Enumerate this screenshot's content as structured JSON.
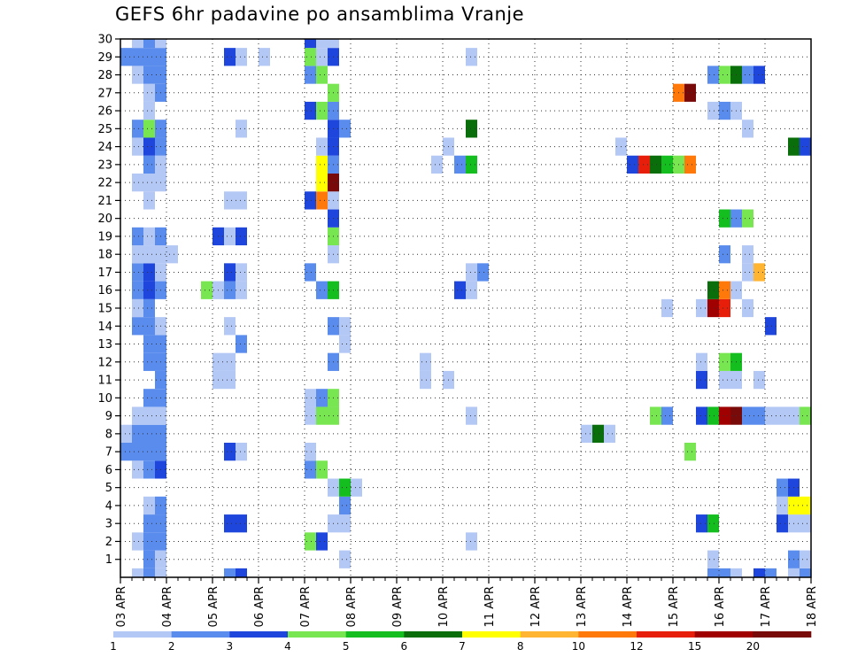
{
  "chart_data": {
    "type": "heatmap",
    "title": "GEFS 6hr padavine po ansamblima Vranje",
    "xlabel": "",
    "ylabel": "",
    "x_ticks": [
      "03 APR",
      "04 APR",
      "05 APR",
      "06 APR",
      "07 APR",
      "08 APR",
      "09 APR",
      "10 APR",
      "11 APR",
      "12 APR",
      "13 APR",
      "14 APR",
      "15 APR",
      "16 APR",
      "17 APR",
      "18 APR"
    ],
    "y_ticks": [
      1,
      2,
      3,
      4,
      5,
      6,
      7,
      8,
      9,
      10,
      11,
      12,
      13,
      14,
      15,
      16,
      17,
      18,
      19,
      20,
      21,
      22,
      23,
      24,
      25,
      26,
      27,
      28,
      29,
      30
    ],
    "x_range": [
      0,
      15
    ],
    "y_range": [
      0,
      30
    ],
    "grid": true,
    "legend": "bottom colorbar",
    "colorbar": {
      "labels": [
        "1",
        "2",
        "3",
        "4",
        "5",
        "6",
        "7",
        "8",
        "10",
        "12",
        "15",
        "20"
      ],
      "colors": [
        "#b4c8f5",
        "#5a8ced",
        "#1e46dc",
        "#78e650",
        "#14be1e",
        "#0a6e0a",
        "#ffff00",
        "#ffb432",
        "#ff780a",
        "#e61e0a",
        "#a00000",
        "#780a0a"
      ]
    },
    "cells": [
      [
        0.25,
        0,
        1
      ],
      [
        0.5,
        0,
        2
      ],
      [
        0.75,
        0,
        1
      ],
      [
        2.25,
        0,
        2
      ],
      [
        2.5,
        0,
        3
      ],
      [
        12.75,
        0,
        2
      ],
      [
        13,
        0,
        2
      ],
      [
        13.25,
        0,
        1
      ],
      [
        13.75,
        0,
        3
      ],
      [
        14,
        0,
        2
      ],
      [
        14.5,
        0,
        1
      ],
      [
        14.75,
        0,
        2
      ],
      [
        0.5,
        1,
        2
      ],
      [
        0.75,
        1,
        1
      ],
      [
        4.75,
        1,
        1
      ],
      [
        12.75,
        1,
        1
      ],
      [
        14.5,
        1,
        2
      ],
      [
        14.75,
        1,
        1
      ],
      [
        15,
        1,
        5
      ],
      [
        15.25,
        1,
        3
      ],
      [
        0.25,
        2,
        1
      ],
      [
        0.5,
        2,
        2
      ],
      [
        0.75,
        2,
        2
      ],
      [
        4,
        2,
        4
      ],
      [
        4.25,
        2,
        3
      ],
      [
        7.5,
        2,
        1
      ],
      [
        0.5,
        3,
        2
      ],
      [
        0.75,
        3,
        2
      ],
      [
        2.25,
        3,
        3
      ],
      [
        2.5,
        3,
        3
      ],
      [
        4.5,
        3,
        1
      ],
      [
        4.75,
        3,
        1
      ],
      [
        12.5,
        3,
        3
      ],
      [
        12.75,
        3,
        5
      ],
      [
        14.25,
        3,
        3
      ],
      [
        14.5,
        3,
        1
      ],
      [
        14.75,
        3,
        1
      ],
      [
        15,
        3,
        1
      ],
      [
        0.5,
        4,
        1
      ],
      [
        0.75,
        4,
        2
      ],
      [
        4.75,
        4,
        2
      ],
      [
        14.25,
        4,
        1
      ],
      [
        14.5,
        4,
        7
      ],
      [
        14.75,
        4,
        7
      ],
      [
        15,
        4,
        2
      ],
      [
        15.25,
        4,
        2
      ],
      [
        4.5,
        5,
        1
      ],
      [
        4.75,
        5,
        5
      ],
      [
        5,
        5,
        1
      ],
      [
        14.25,
        5,
        2
      ],
      [
        14.5,
        5,
        3
      ],
      [
        0.25,
        6,
        1
      ],
      [
        0.5,
        6,
        2
      ],
      [
        0.75,
        6,
        3
      ],
      [
        4,
        6,
        2
      ],
      [
        4.25,
        6,
        4
      ],
      [
        0,
        7,
        2
      ],
      [
        0.25,
        7,
        2
      ],
      [
        0.5,
        7,
        2
      ],
      [
        0.75,
        7,
        2
      ],
      [
        2.25,
        7,
        3
      ],
      [
        2.5,
        7,
        1
      ],
      [
        4,
        7,
        1
      ],
      [
        12.25,
        7,
        4
      ],
      [
        0,
        8,
        1
      ],
      [
        0.25,
        8,
        2
      ],
      [
        0.5,
        8,
        2
      ],
      [
        0.75,
        8,
        2
      ],
      [
        10,
        8,
        1
      ],
      [
        10.25,
        8,
        6
      ],
      [
        10.5,
        8,
        1
      ],
      [
        0.25,
        9,
        1
      ],
      [
        0.5,
        9,
        1
      ],
      [
        0.75,
        9,
        1
      ],
      [
        4,
        9,
        1
      ],
      [
        4.25,
        9,
        4
      ],
      [
        4.5,
        9,
        4
      ],
      [
        7.5,
        9,
        1
      ],
      [
        11.5,
        9,
        4
      ],
      [
        11.75,
        9,
        2
      ],
      [
        12.5,
        9,
        3
      ],
      [
        12.75,
        9,
        5
      ],
      [
        13,
        9,
        11
      ],
      [
        13.25,
        9,
        12
      ],
      [
        13.5,
        9,
        2
      ],
      [
        13.75,
        9,
        2
      ],
      [
        14,
        9,
        1
      ],
      [
        14.25,
        9,
        1
      ],
      [
        14.5,
        9,
        1
      ],
      [
        14.75,
        9,
        4
      ],
      [
        15,
        9,
        8
      ],
      [
        0.5,
        10,
        2
      ],
      [
        0.75,
        10,
        2
      ],
      [
        4,
        10,
        1
      ],
      [
        4.25,
        10,
        2
      ],
      [
        4.5,
        10,
        4
      ],
      [
        0.75,
        11,
        2
      ],
      [
        2,
        11,
        1
      ],
      [
        2.25,
        11,
        1
      ],
      [
        6.5,
        11,
        1
      ],
      [
        7,
        11,
        1
      ],
      [
        12.5,
        11,
        3
      ],
      [
        13,
        11,
        1
      ],
      [
        13.25,
        11,
        1
      ],
      [
        13.75,
        11,
        1
      ],
      [
        0.5,
        12,
        2
      ],
      [
        0.75,
        12,
        2
      ],
      [
        2,
        12,
        1
      ],
      [
        2.25,
        12,
        1
      ],
      [
        4.5,
        12,
        2
      ],
      [
        6.5,
        12,
        1
      ],
      [
        12.5,
        12,
        1
      ],
      [
        13,
        12,
        4
      ],
      [
        13.25,
        12,
        5
      ],
      [
        15.25,
        12,
        1
      ],
      [
        0.5,
        13,
        2
      ],
      [
        0.75,
        13,
        2
      ],
      [
        2.5,
        13,
        2
      ],
      [
        4.75,
        13,
        1
      ],
      [
        0.25,
        14,
        2
      ],
      [
        0.5,
        14,
        2
      ],
      [
        0.75,
        14,
        1
      ],
      [
        2.25,
        14,
        1
      ],
      [
        4.5,
        14,
        2
      ],
      [
        4.75,
        14,
        1
      ],
      [
        14,
        14,
        3
      ],
      [
        0.25,
        15,
        1
      ],
      [
        0.5,
        15,
        2
      ],
      [
        11.75,
        15,
        1
      ],
      [
        12.5,
        15,
        1
      ],
      [
        12.75,
        15,
        11
      ],
      [
        13,
        15,
        10
      ],
      [
        13.5,
        15,
        1
      ],
      [
        0.25,
        16,
        2
      ],
      [
        0.5,
        16,
        3
      ],
      [
        0.75,
        16,
        2
      ],
      [
        1.75,
        16,
        4
      ],
      [
        2,
        16,
        1
      ],
      [
        2.25,
        16,
        2
      ],
      [
        2.5,
        16,
        1
      ],
      [
        4.25,
        16,
        2
      ],
      [
        4.5,
        16,
        5
      ],
      [
        7.25,
        16,
        3
      ],
      [
        7.5,
        16,
        1
      ],
      [
        12.75,
        16,
        6
      ],
      [
        13,
        16,
        9
      ],
      [
        13.25,
        16,
        1
      ],
      [
        0.25,
        17,
        2
      ],
      [
        0.5,
        17,
        3
      ],
      [
        0.75,
        17,
        1
      ],
      [
        2.25,
        17,
        3
      ],
      [
        2.5,
        17,
        1
      ],
      [
        4,
        17,
        2
      ],
      [
        7.5,
        17,
        1
      ],
      [
        7.75,
        17,
        2
      ],
      [
        13.5,
        17,
        1
      ],
      [
        13.75,
        17,
        8
      ],
      [
        0.25,
        18,
        1
      ],
      [
        0.5,
        18,
        1
      ],
      [
        0.75,
        18,
        1
      ],
      [
        1,
        18,
        1
      ],
      [
        4.5,
        18,
        1
      ],
      [
        13,
        18,
        2
      ],
      [
        13.5,
        18,
        1
      ],
      [
        15,
        18,
        3
      ],
      [
        15.25,
        18,
        5
      ],
      [
        0.25,
        19,
        2
      ],
      [
        0.5,
        19,
        1
      ],
      [
        0.75,
        19,
        2
      ],
      [
        2,
        19,
        3
      ],
      [
        2.25,
        19,
        1
      ],
      [
        2.5,
        19,
        3
      ],
      [
        4.5,
        19,
        4
      ],
      [
        4.5,
        20,
        3
      ],
      [
        13,
        20,
        5
      ],
      [
        13.25,
        20,
        2
      ],
      [
        13.5,
        20,
        4
      ],
      [
        0.5,
        21,
        1
      ],
      [
        2.25,
        21,
        1
      ],
      [
        2.5,
        21,
        1
      ],
      [
        4,
        21,
        3
      ],
      [
        4.25,
        21,
        9
      ],
      [
        4.5,
        21,
        1
      ],
      [
        0.25,
        22,
        1
      ],
      [
        0.5,
        22,
        1
      ],
      [
        0.75,
        22,
        1
      ],
      [
        4.25,
        22,
        7
      ],
      [
        4.5,
        22,
        12
      ],
      [
        15,
        22,
        2
      ],
      [
        15.25,
        22,
        1
      ],
      [
        0.5,
        23,
        2
      ],
      [
        0.75,
        23,
        1
      ],
      [
        4.25,
        23,
        7
      ],
      [
        4.5,
        23,
        2
      ],
      [
        6.75,
        23,
        1
      ],
      [
        7.25,
        23,
        2
      ],
      [
        7.5,
        23,
        5
      ],
      [
        11,
        23,
        3
      ],
      [
        11.25,
        23,
        10
      ],
      [
        11.5,
        23,
        6
      ],
      [
        11.75,
        23,
        5
      ],
      [
        12,
        23,
        4
      ],
      [
        12.25,
        23,
        9
      ],
      [
        0.25,
        24,
        1
      ],
      [
        0.5,
        24,
        3
      ],
      [
        0.75,
        24,
        2
      ],
      [
        4.25,
        24,
        1
      ],
      [
        4.5,
        24,
        3
      ],
      [
        7,
        24,
        1
      ],
      [
        10.75,
        24,
        1
      ],
      [
        14.5,
        24,
        6
      ],
      [
        14.75,
        24,
        3
      ],
      [
        15,
        24,
        5
      ],
      [
        0.25,
        25,
        2
      ],
      [
        0.5,
        25,
        4
      ],
      [
        0.75,
        25,
        2
      ],
      [
        2.5,
        25,
        1
      ],
      [
        4.5,
        25,
        3
      ],
      [
        4.75,
        25,
        2
      ],
      [
        7.5,
        25,
        6
      ],
      [
        13.5,
        25,
        1
      ],
      [
        0.5,
        26,
        1
      ],
      [
        4,
        26,
        3
      ],
      [
        4.25,
        26,
        4
      ],
      [
        4.5,
        26,
        2
      ],
      [
        12.75,
        26,
        1
      ],
      [
        13,
        26,
        2
      ],
      [
        13.25,
        26,
        1
      ],
      [
        15,
        26,
        1
      ],
      [
        15.25,
        26,
        4
      ],
      [
        0.5,
        27,
        1
      ],
      [
        0.75,
        27,
        2
      ],
      [
        4.5,
        27,
        4
      ],
      [
        12,
        27,
        9
      ],
      [
        12.25,
        27,
        12
      ],
      [
        0.25,
        28,
        1
      ],
      [
        0.5,
        28,
        2
      ],
      [
        0.75,
        28,
        2
      ],
      [
        4,
        28,
        2
      ],
      [
        4.25,
        28,
        4
      ],
      [
        12.75,
        28,
        2
      ],
      [
        13,
        28,
        4
      ],
      [
        13.25,
        28,
        6
      ],
      [
        13.5,
        28,
        2
      ],
      [
        13.75,
        28,
        3
      ],
      [
        0,
        29,
        2
      ],
      [
        0.25,
        29,
        2
      ],
      [
        0.5,
        29,
        2
      ],
      [
        0.75,
        29,
        2
      ],
      [
        2.25,
        29,
        3
      ],
      [
        2.5,
        29,
        1
      ],
      [
        3,
        29,
        1
      ],
      [
        4,
        29,
        4
      ],
      [
        4.25,
        29,
        1
      ],
      [
        4.5,
        29,
        3
      ],
      [
        7.5,
        29,
        1
      ],
      [
        0.25,
        30,
        1
      ],
      [
        0.5,
        30,
        2
      ],
      [
        0.75,
        30,
        1
      ],
      [
        4,
        30,
        3
      ],
      [
        4.25,
        30,
        1
      ],
      [
        4.5,
        30,
        1
      ],
      [
        15.25,
        30,
        2
      ]
    ]
  }
}
